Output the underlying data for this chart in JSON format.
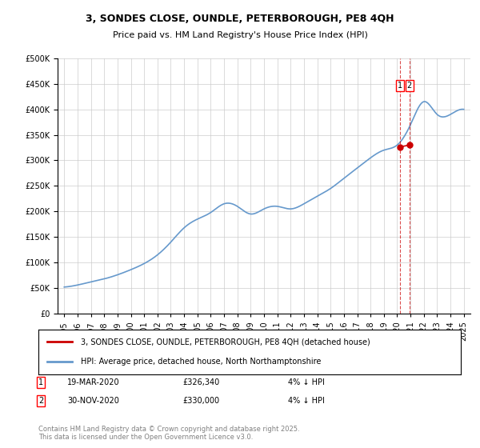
{
  "title_line1": "3, SONDES CLOSE, OUNDLE, PETERBOROUGH, PE8 4QH",
  "title_line2": "Price paid vs. HM Land Registry's House Price Index (HPI)",
  "ylabel": "",
  "ylim": [
    0,
    500000
  ],
  "yticks": [
    0,
    50000,
    100000,
    150000,
    200000,
    250000,
    300000,
    350000,
    400000,
    450000,
    500000
  ],
  "legend_line1": "3, SONDES CLOSE, OUNDLE, PETERBOROUGH, PE8 4QH (detached house)",
  "legend_line2": "HPI: Average price, detached house, North Northamptonshire",
  "footnote": "Contains HM Land Registry data © Crown copyright and database right 2025.\nThis data is licensed under the Open Government Licence v3.0.",
  "annotation1": {
    "num": "1",
    "date": "19-MAR-2020",
    "price": "£326,340",
    "note": "4% ↓ HPI"
  },
  "annotation2": {
    "num": "2",
    "date": "30-NOV-2020",
    "price": "£330,000",
    "note": "4% ↓ HPI"
  },
  "sold_color": "#cc0000",
  "hpi_color": "#6699cc",
  "vline_color": "#cc0000",
  "background_color": "#ffffff",
  "grid_color": "#cccccc",
  "hpi_years": [
    1995,
    1996,
    1997,
    1998,
    1999,
    2000,
    2001,
    2002,
    2003,
    2004,
    2005,
    2006,
    2007,
    2008,
    2009,
    2010,
    2011,
    2012,
    2013,
    2014,
    2015,
    2016,
    2017,
    2018,
    2019,
    2020,
    2021,
    2022,
    2023,
    2024,
    2025
  ],
  "hpi_values": [
    52000,
    56000,
    62000,
    68000,
    76000,
    86000,
    98000,
    115000,
    140000,
    168000,
    185000,
    198000,
    215000,
    210000,
    195000,
    205000,
    210000,
    205000,
    215000,
    230000,
    245000,
    265000,
    285000,
    305000,
    320000,
    330000,
    370000,
    415000,
    390000,
    390000,
    400000
  ],
  "sold_dates": [
    2020.21,
    2020.91
  ],
  "sold_prices": [
    326340,
    330000
  ],
  "vline_x1": 2020.21,
  "vline_x2": 2020.91,
  "xlim_left": 1994.5,
  "xlim_right": 2025.5,
  "xtick_years": [
    1995,
    1996,
    1997,
    1998,
    1999,
    2000,
    2001,
    2002,
    2003,
    2004,
    2005,
    2006,
    2007,
    2008,
    2009,
    2010,
    2011,
    2012,
    2013,
    2014,
    2015,
    2016,
    2017,
    2018,
    2019,
    2020,
    2021,
    2022,
    2023,
    2024,
    2025
  ]
}
